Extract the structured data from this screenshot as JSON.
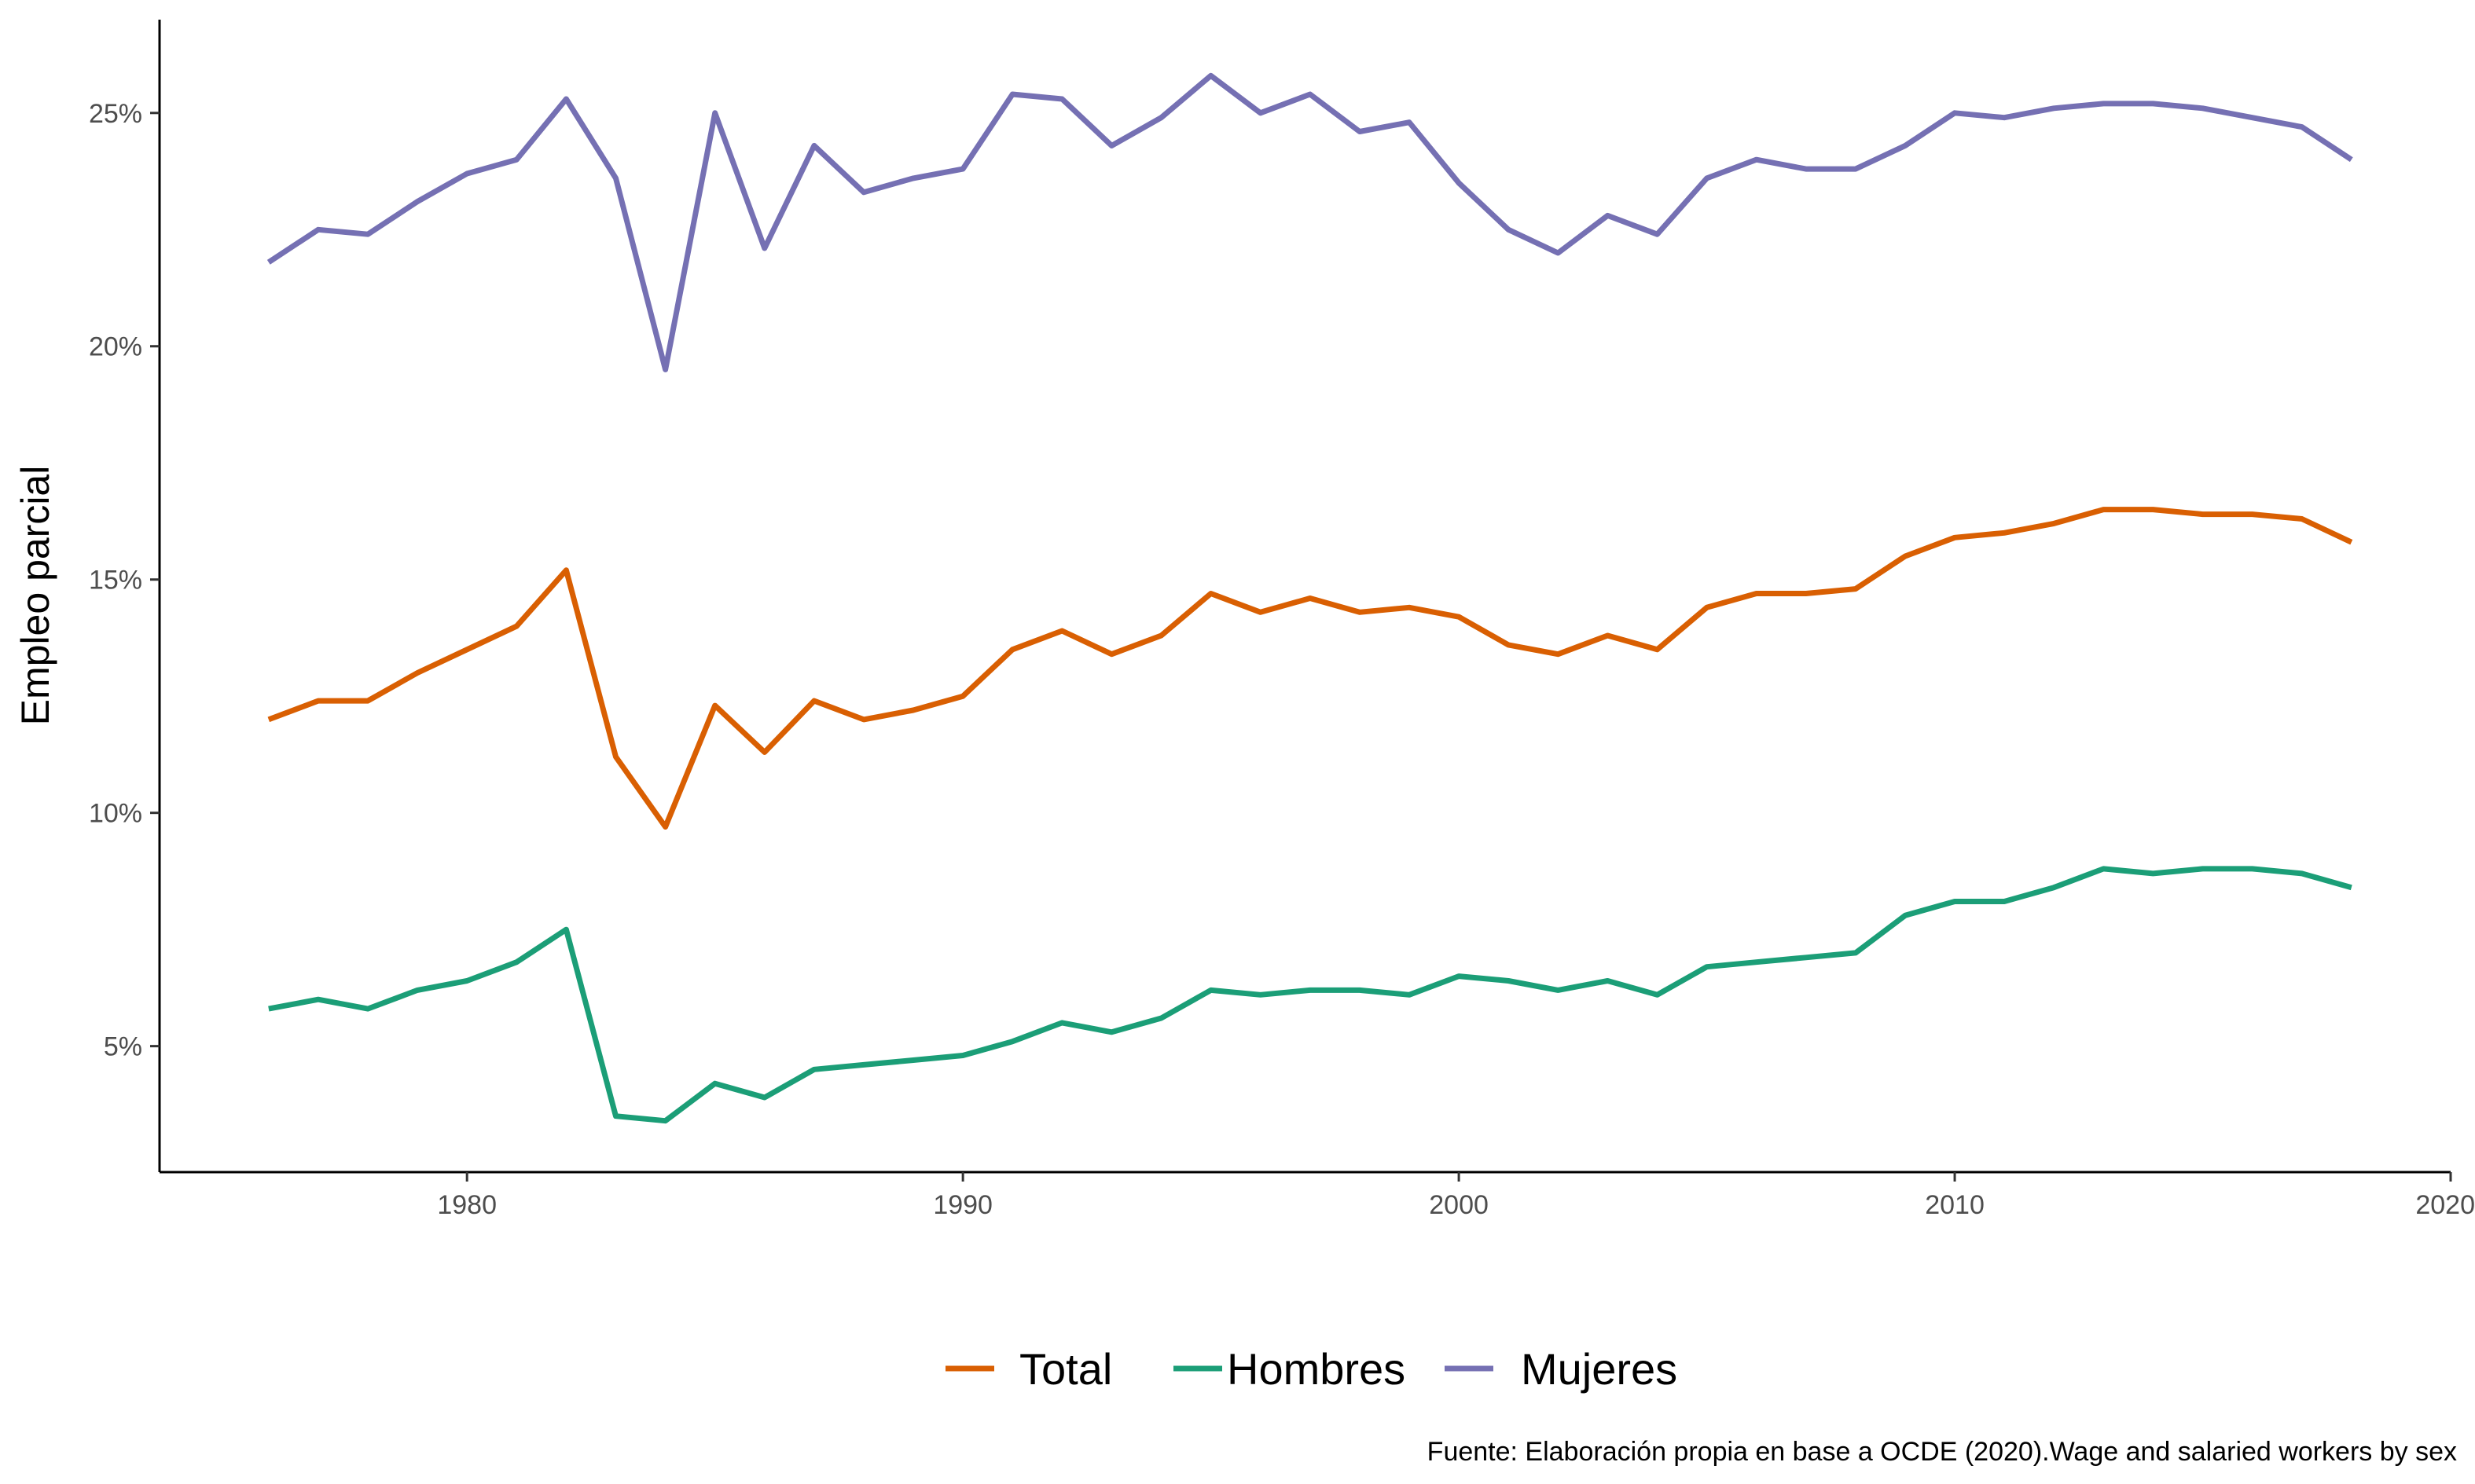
{
  "chart_data": {
    "type": "line",
    "title": "",
    "xlabel": "",
    "ylabel": "Empleo parcial",
    "caption": "Fuente: Elaboración propia en base a OCDE (2020).Wage and salaried workers by sex",
    "xlim": [
      1973.8,
      2020
    ],
    "ylim": [
      2.3,
      27
    ],
    "x_ticks": [
      1980,
      1990,
      2000,
      2010,
      2020
    ],
    "x_tick_labels": [
      "1980",
      "1990",
      "2000",
      "2010",
      "2020"
    ],
    "y_ticks": [
      5,
      10,
      15,
      20,
      25
    ],
    "y_tick_labels": [
      "5%",
      "10%",
      "15%",
      "20%",
      "25%"
    ],
    "grid": false,
    "legend_position": "bottom",
    "x": [
      1976,
      1977,
      1978,
      1979,
      1980,
      1981,
      1982,
      1983,
      1984,
      1985,
      1986,
      1987,
      1988,
      1989,
      1990,
      1991,
      1992,
      1993,
      1994,
      1995,
      1996,
      1997,
      1998,
      1999,
      2000,
      2001,
      2002,
      2003,
      2004,
      2005,
      2006,
      2007,
      2008,
      2009,
      2010,
      2011,
      2012,
      2013,
      2014,
      2015,
      2016,
      2017,
      2018
    ],
    "series": [
      {
        "name": "Total",
        "color": "#D95F02",
        "values": [
          12.0,
          12.4,
          12.4,
          13.0,
          13.5,
          14.0,
          15.2,
          11.2,
          9.7,
          12.3,
          11.3,
          12.4,
          12.0,
          12.2,
          12.5,
          13.5,
          13.9,
          13.4,
          13.8,
          14.7,
          14.3,
          14.6,
          14.3,
          14.4,
          14.2,
          13.6,
          13.4,
          13.8,
          13.5,
          14.4,
          14.7,
          14.7,
          14.8,
          15.5,
          15.9,
          16.0,
          16.2,
          16.5,
          16.5,
          16.4,
          16.4,
          16.3,
          15.8
        ]
      },
      {
        "name": "Hombres",
        "color": "#1B9E77",
        "values": [
          5.8,
          6.0,
          5.8,
          6.2,
          6.4,
          6.8,
          7.5,
          3.5,
          3.4,
          4.2,
          3.9,
          4.5,
          4.6,
          4.7,
          4.8,
          5.1,
          5.5,
          5.3,
          5.6,
          6.2,
          6.1,
          6.2,
          6.2,
          6.1,
          6.5,
          6.4,
          6.2,
          6.4,
          6.1,
          6.7,
          6.8,
          6.9,
          7.0,
          7.8,
          8.1,
          8.1,
          8.4,
          8.8,
          8.7,
          8.8,
          8.8,
          8.7,
          8.4
        ]
      },
      {
        "name": "Mujeres",
        "color": "#7570B3",
        "values": [
          21.8,
          22.5,
          22.4,
          23.1,
          23.7,
          24.0,
          25.3,
          23.6,
          19.5,
          25.0,
          22.1,
          24.3,
          23.3,
          23.6,
          23.8,
          25.4,
          25.3,
          24.3,
          24.9,
          25.8,
          25.0,
          25.4,
          24.6,
          24.8,
          23.5,
          22.5,
          22.0,
          22.8,
          22.4,
          23.6,
          24.0,
          23.8,
          23.8,
          24.3,
          25.0,
          24.9,
          25.1,
          25.2,
          25.2,
          25.1,
          24.9,
          24.7,
          24.0
        ]
      }
    ]
  }
}
